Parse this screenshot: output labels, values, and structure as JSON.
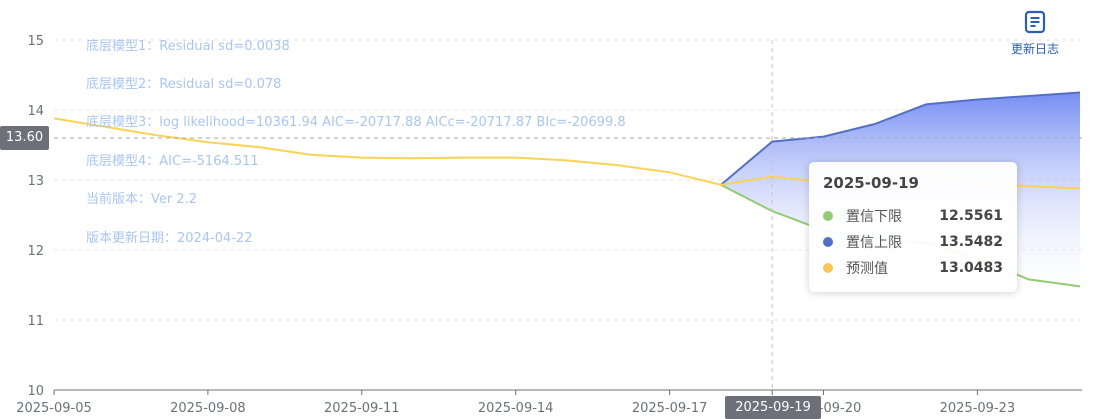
{
  "info": [
    "底层模型1：Residual sd=0.0038",
    "底层模型2：Residual sd=0.078",
    "底层模型3：log likelihood=10361.94 AIC=-20717.88 AICc=-20717.87 BIc=-20699.8",
    "底层模型4：AIC=-5164.511",
    "当前版本：Ver 2.2",
    "版本更新日期：2024-04-22"
  ],
  "changelog": {
    "label": "更新日志",
    "icon": "document-icon"
  },
  "cursor": {
    "y_value": "13.60",
    "x_value": "2025-09-19"
  },
  "tooltip": {
    "title": "2025-09-19",
    "rows": [
      {
        "name": "置信下限",
        "value": "12.5561",
        "color": "#91cc75"
      },
      {
        "name": "置信上限",
        "value": "13.5482",
        "color": "#5470c6"
      },
      {
        "name": "预测值",
        "value": "13.0483",
        "color": "#fac858"
      }
    ]
  },
  "chart_data": {
    "type": "line",
    "x_ticks": [
      "2025-09-05",
      "2025-09-08",
      "2025-09-11",
      "2025-09-14",
      "2025-09-17",
      "2025-09-19",
      "2025-09-20",
      "2025-09-23"
    ],
    "y_ticks": [
      10,
      11,
      12,
      13,
      14,
      15
    ],
    "ylim": [
      10,
      15
    ],
    "grid": true,
    "colors": {
      "prediction": "#fad354",
      "upper": "#5470c6",
      "lower": "#91cc75",
      "area": "#6f88f2"
    },
    "series": [
      {
        "name": "预测值",
        "points": [
          [
            "2025-09-05",
            13.88
          ],
          [
            "2025-09-06",
            13.76
          ],
          [
            "2025-09-07",
            13.64
          ],
          [
            "2025-09-08",
            13.54
          ],
          [
            "2025-09-09",
            13.47
          ],
          [
            "2025-09-10",
            13.36
          ],
          [
            "2025-09-11",
            13.32
          ],
          [
            "2025-09-12",
            13.31
          ],
          [
            "2025-09-13",
            13.32
          ],
          [
            "2025-09-14",
            13.32
          ],
          [
            "2025-09-15",
            13.28
          ],
          [
            "2025-09-16",
            13.21
          ],
          [
            "2025-09-17",
            13.11
          ],
          [
            "2025-09-18",
            12.93
          ],
          [
            "2025-09-19",
            13.0483
          ],
          [
            "2025-09-20",
            12.97
          ],
          [
            "2025-09-21",
            13.05
          ],
          [
            "2025-09-22",
            13.08
          ],
          [
            "2025-09-23",
            12.97
          ],
          [
            "2025-09-24",
            12.91
          ],
          [
            "2025-09-25",
            12.88
          ]
        ]
      },
      {
        "name": "置信上限",
        "points": [
          [
            "2025-09-18",
            12.93
          ],
          [
            "2025-09-19",
            13.5482
          ],
          [
            "2025-09-20",
            13.62
          ],
          [
            "2025-09-21",
            13.8
          ],
          [
            "2025-09-22",
            14.08
          ],
          [
            "2025-09-23",
            14.15
          ],
          [
            "2025-09-24",
            14.2
          ],
          [
            "2025-09-25",
            14.25
          ]
        ]
      },
      {
        "name": "置信下限",
        "points": [
          [
            "2025-09-18",
            12.93
          ],
          [
            "2025-09-19",
            12.5561
          ],
          [
            "2025-09-20",
            12.28
          ],
          [
            "2025-09-21",
            12.15
          ],
          [
            "2025-09-22",
            12.1
          ],
          [
            "2025-09-23",
            11.88
          ],
          [
            "2025-09-24",
            11.58
          ],
          [
            "2025-09-25",
            11.48
          ]
        ]
      }
    ]
  }
}
